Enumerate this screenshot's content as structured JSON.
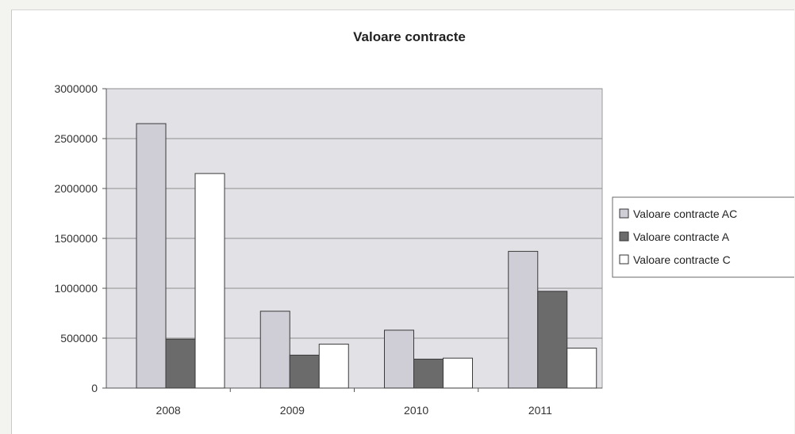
{
  "chart_data": {
    "type": "bar",
    "title": "Valoare contracte",
    "xlabel": "",
    "ylabel": "",
    "categories": [
      "2008",
      "2009",
      "2010",
      "2011"
    ],
    "series": [
      {
        "name": "Valoare contracte AC",
        "color": "#cfcdd6",
        "values": [
          2650000,
          770000,
          580000,
          1370000
        ]
      },
      {
        "name": "Valoare contracte A",
        "color": "#6b6b6b",
        "values": [
          490000,
          330000,
          290000,
          970000
        ]
      },
      {
        "name": "Valoare contracte C",
        "color": "#ffffff",
        "values": [
          2150000,
          440000,
          300000,
          400000
        ]
      }
    ],
    "ylim": [
      0,
      3000000
    ],
    "yticks": [
      0,
      500000,
      1000000,
      1500000,
      2000000,
      2500000,
      3000000
    ],
    "ytick_labels": [
      "0",
      "500000",
      "1000000",
      "1500000",
      "2000000",
      "2500000",
      "3000000"
    ],
    "grid": true,
    "plot_background": "#e2e2e6",
    "legend_position": "right"
  }
}
